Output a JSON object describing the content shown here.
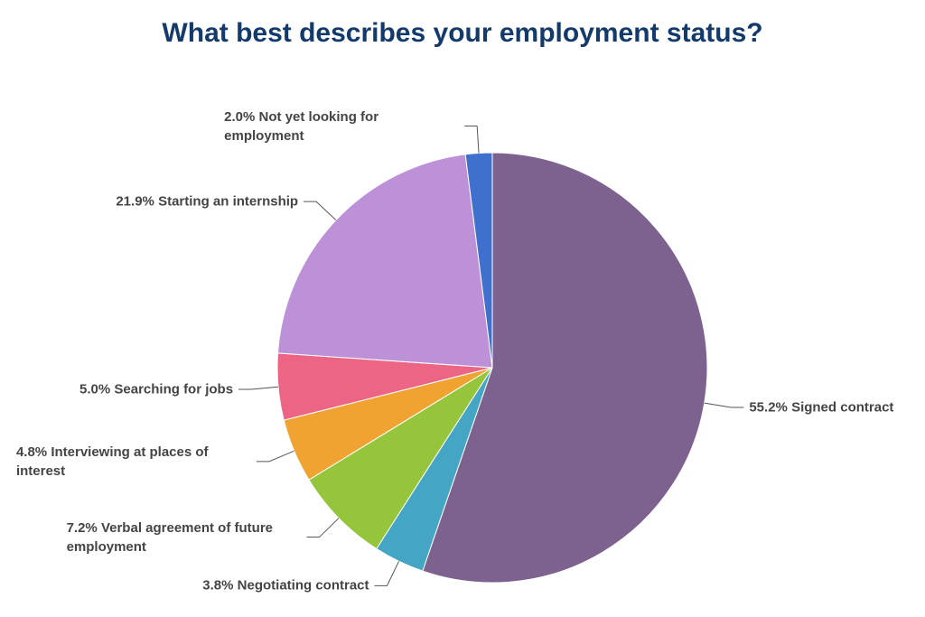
{
  "chart_data": {
    "type": "pie",
    "title": "What best describes your employment status?",
    "categories": [
      "Signed contract",
      "Negotiating contract",
      "Verbal agreement of future employment",
      "Interviewing at places of interest",
      "Searching for jobs",
      "Starting an internship",
      "Not yet looking for employment"
    ],
    "values": [
      55.2,
      3.8,
      7.2,
      4.8,
      5.0,
      21.9,
      2.0
    ],
    "value_labels": [
      "55.2%",
      "3.8%",
      "7.2%",
      "4.8%",
      "5.0%",
      "21.9%",
      "2.0%"
    ],
    "colors": [
      "#7d618f",
      "#45a5c4",
      "#95c53b",
      "#f0a331",
      "#ec6585",
      "#bd91d8",
      "#3f70ce"
    ]
  }
}
